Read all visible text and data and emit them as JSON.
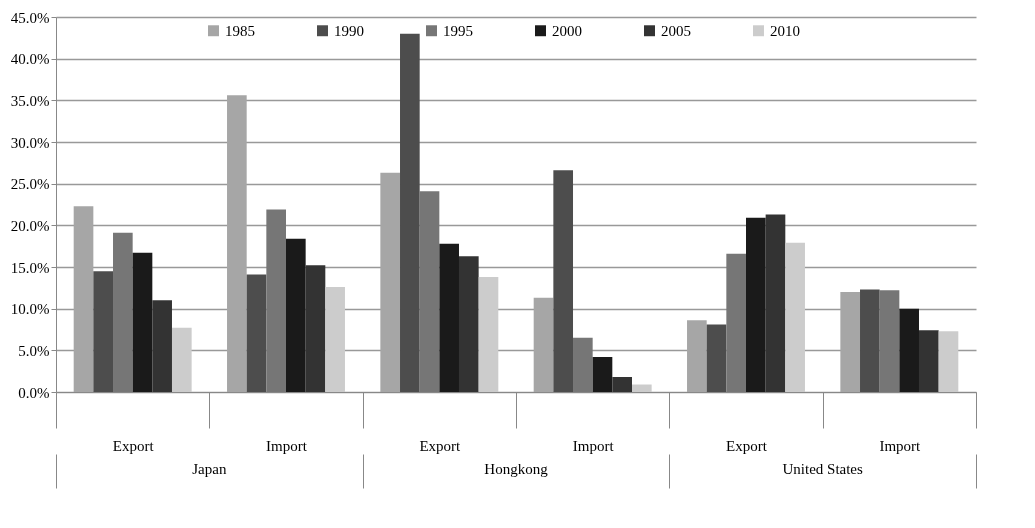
{
  "chart_data": {
    "type": "bar",
    "categories": [
      "Export",
      "Import",
      "Export",
      "Import",
      "Export",
      "Import"
    ],
    "annotations": [
      "Japan",
      "Hongkong",
      "United States"
    ],
    "series": [
      {
        "name": "1985",
        "color": "#a6a6a6",
        "values": [
          22.3,
          35.6,
          26.3,
          11.3,
          8.6,
          12.0
        ]
      },
      {
        "name": "1990",
        "color": "#4d4d4d",
        "values": [
          14.5,
          14.1,
          43.0,
          26.6,
          8.1,
          12.3
        ]
      },
      {
        "name": "1995",
        "color": "#767676",
        "values": [
          19.1,
          21.9,
          24.1,
          6.5,
          16.6,
          12.2
        ]
      },
      {
        "name": "2000",
        "color": "#1a1a1a",
        "values": [
          16.7,
          18.4,
          17.8,
          4.2,
          20.9,
          10.0
        ]
      },
      {
        "name": "2005",
        "color": "#333333",
        "values": [
          11.0,
          15.2,
          16.3,
          1.8,
          21.3,
          7.4
        ]
      },
      {
        "name": "2010",
        "color": "#cccccc",
        "values": [
          7.7,
          12.6,
          13.8,
          0.9,
          17.9,
          7.3
        ]
      }
    ],
    "ylim": [
      0,
      45
    ],
    "yticks": [
      {
        "value": 0,
        "label": "0.0%"
      },
      {
        "value": 5,
        "label": "5.0%"
      },
      {
        "value": 10,
        "label": "10.0%"
      },
      {
        "value": 15,
        "label": "15.0%"
      },
      {
        "value": 20,
        "label": "20.0%"
      },
      {
        "value": 25,
        "label": "25.0%"
      },
      {
        "value": 30,
        "label": "30.0%"
      },
      {
        "value": 35,
        "label": "35.0%"
      },
      {
        "value": 40,
        "label": "40.0%"
      },
      {
        "value": 45,
        "label": "45.0%"
      }
    ],
    "grid": "y",
    "legend": "top"
  }
}
